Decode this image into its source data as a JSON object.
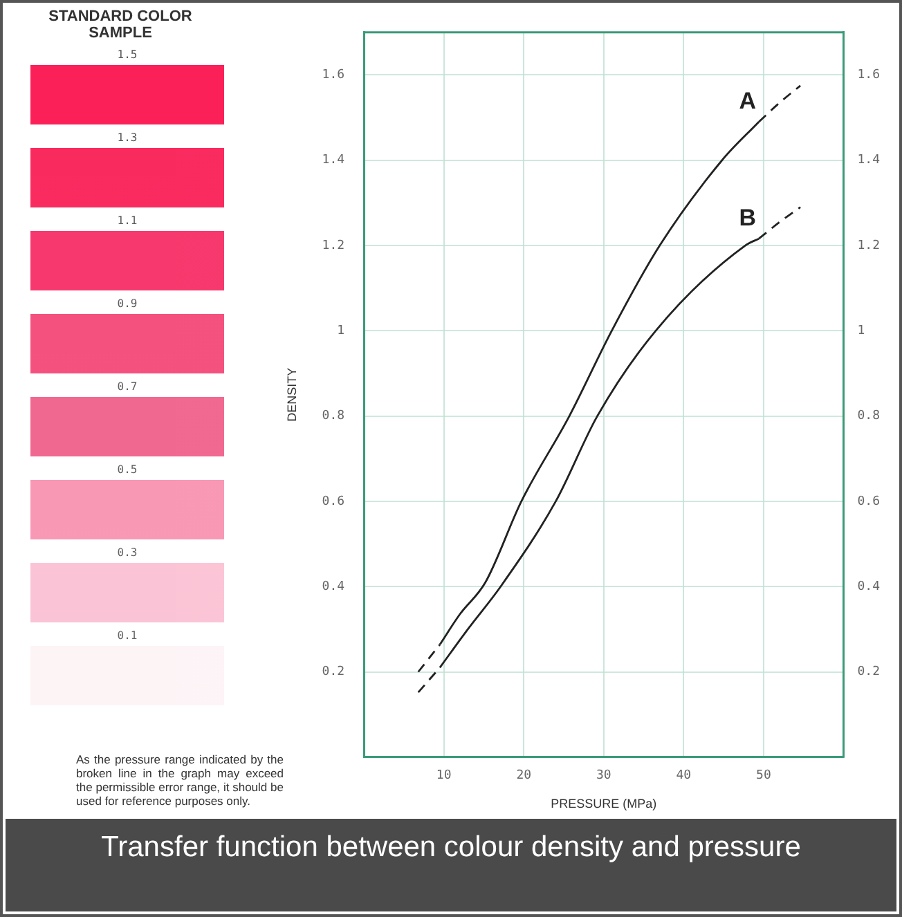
{
  "chart_data": [
    {
      "type": "heatmap",
      "title": "STANDARD COLOR SAMPLE",
      "categories": [
        null
      ],
      "y_categories": [
        null,
        null,
        null,
        null,
        null,
        null,
        null,
        null
      ],
      "data_labels": true,
      "cells": [
        [
          1.5
        ],
        [
          1.3
        ],
        [
          1.1
        ],
        [
          0.9
        ],
        [
          0.7
        ],
        [
          0.5
        ],
        [
          0.3
        ],
        [
          0.1
        ]
      ],
      "colors": [
        "#fb2158",
        "#f9285d",
        "#f7336a",
        "#f44a7a",
        "#f0608a",
        "#f891b0",
        "#fbc0d3",
        "#fdf3f6"
      ],
      "annotations": [
        "As the pressure range indicated by the broken line in the graph may exceed the permissible error range, it should be used for reference purposes only."
      ]
    },
    {
      "type": "line",
      "title": "Transfer function between colour density and pressure",
      "xlabel": "PRESSURE (MPa)",
      "ylabel": "DENSITY",
      "xlim": [
        0,
        60
      ],
      "xticks": [
        10,
        20,
        30,
        40,
        50
      ],
      "ylim": [
        0,
        1.7
      ],
      "yticks": [
        0.2,
        0.4,
        0.6,
        0.8,
        1.0,
        1.2,
        1.4,
        1.6
      ],
      "y2lim": [
        0,
        1.7
      ],
      "y2ticks": [
        0.2,
        0.4,
        0.6,
        0.8,
        1.0,
        1.2,
        1.4,
        1.6
      ],
      "grid": true,
      "legend": false,
      "marker": "none",
      "series": [
        {
          "color": "#222222",
          "line_style": "dashed",
          "x": [
            6.8,
            9.5
          ],
          "values": [
            0.2,
            0.264
          ]
        },
        {
          "name": "A",
          "color": "#222222",
          "line_style": "solid",
          "x": [
            9.5,
            12,
            15.2,
            19.7,
            25.7,
            31,
            37,
            44.8,
            49.4
          ],
          "values": [
            0.264,
            0.335,
            0.41,
            0.6,
            0.8,
            1.0,
            1.2,
            1.4,
            1.49
          ]
        },
        {
          "color": "#222222",
          "line_style": "dashed",
          "x": [
            49.4,
            52,
            54.6
          ],
          "values": [
            1.49,
            1.535,
            1.575
          ]
        },
        {
          "color": "#222222",
          "line_style": "dashed",
          "x": [
            6.8,
            9.5
          ],
          "values": [
            0.152,
            0.21
          ]
        },
        {
          "name": "B",
          "color": "#222222",
          "line_style": "solid",
          "x": [
            9.5,
            13,
            17.1,
            24,
            29.2,
            36.5,
            47.7,
            49.4
          ],
          "values": [
            0.21,
            0.3,
            0.4,
            0.6,
            0.8,
            1.0,
            1.2,
            1.216
          ]
        },
        {
          "color": "#222222",
          "line_style": "dashed",
          "x": [
            49.4,
            52,
            54.6
          ],
          "values": [
            1.216,
            1.255,
            1.29
          ]
        }
      ]
    }
  ]
}
